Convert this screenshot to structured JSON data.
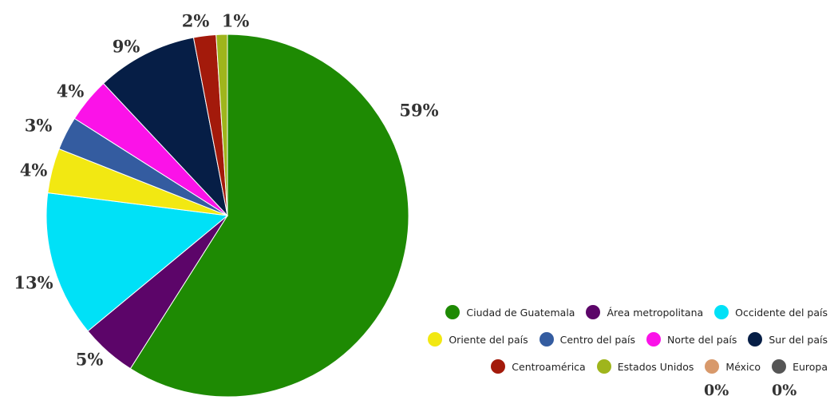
{
  "chart_data": {
    "type": "pie",
    "title": "",
    "slices": [
      {
        "label": "Ciudad de Guatemala",
        "value": 59,
        "display": "59%",
        "color": "#1e8a03"
      },
      {
        "label": "Área metropolitana",
        "value": 5,
        "display": "5%",
        "color": "#5c0569"
      },
      {
        "label": "Occidente del país",
        "value": 13,
        "display": "13%",
        "color": "#00e1f7"
      },
      {
        "label": "Oriente del país",
        "value": 4,
        "display": "4%",
        "color": "#f2e812"
      },
      {
        "label": "Centro del país",
        "value": 3,
        "display": "3%",
        "color": "#345ca0"
      },
      {
        "label": "Norte del país",
        "value": 4,
        "display": "4%",
        "color": "#fb12e8"
      },
      {
        "label": "Sur del país",
        "value": 9,
        "display": "9%",
        "color": "#061e46"
      },
      {
        "label": "Centroamérica",
        "value": 2,
        "display": "2%",
        "color": "#a31a0b"
      },
      {
        "label": "Estados Unidos",
        "value": 1,
        "display": "1%",
        "color": "#9fb51c"
      },
      {
        "label": "México",
        "value": 0,
        "display": "0%",
        "color": "#d8996b"
      },
      {
        "label": "Europa",
        "value": 0,
        "display": "0%",
        "color": "#555555"
      }
    ],
    "legend_position": "bottom-right"
  }
}
